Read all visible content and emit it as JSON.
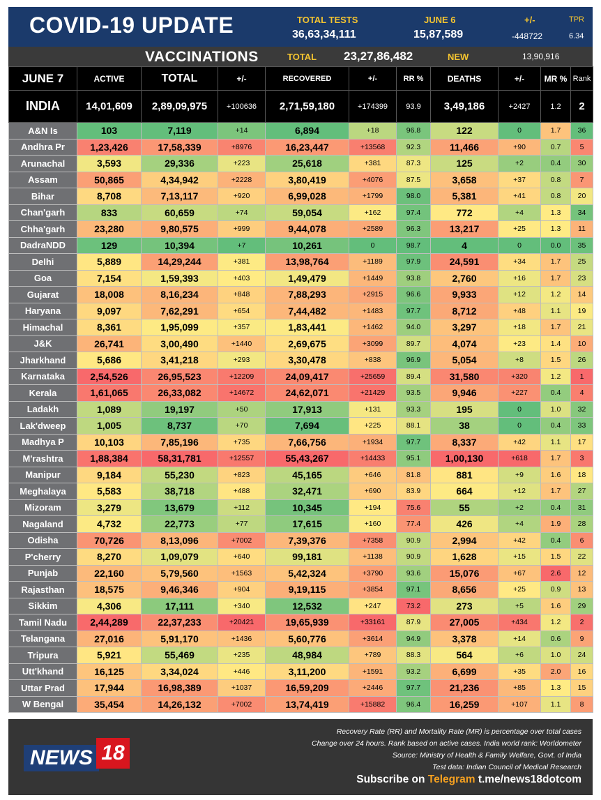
{
  "header": {
    "title": "COVID-19 UPDATE",
    "total_tests_label": "TOTAL TESTS",
    "total_tests_value": "36,63,34,111",
    "date_label": "JUNE 6",
    "date_tests_value": "15,87,589",
    "change_label": "+/-",
    "change_value": "-448722",
    "tpr_label": "TPR",
    "tpr_value": "6.34"
  },
  "vaccinations": {
    "title": "VACCINATIONS",
    "total_label": "TOTAL",
    "total_value": "23,27,86,482",
    "new_label": "NEW",
    "new_value": "13,90,916"
  },
  "columns": {
    "date": "JUNE 7",
    "active": "ACTIVE",
    "total": "TOTAL",
    "total_change": "+/-",
    "recovered": "RECOVERED",
    "recovered_change": "+/-",
    "rr": "RR %",
    "deaths": "DEATHS",
    "deaths_change": "+/-",
    "mr": "MR %",
    "rank": "Rank"
  },
  "india": {
    "name": "INDIA",
    "active": "14,01,609",
    "total": "2,89,09,975",
    "total_change": "+100636",
    "recovered": "2,71,59,180",
    "recovered_change": "+174399",
    "rr": "93.9",
    "deaths": "3,49,186",
    "deaths_change": "+2427",
    "mr": "1.2",
    "rank": "2"
  },
  "rows": [
    {
      "state": "A&N Is",
      "active": "103",
      "total": "7,119",
      "total_change": "+14",
      "recovered": "6,894",
      "recovered_change": "+18",
      "rr": "96.8",
      "deaths": "122",
      "deaths_change": "0",
      "mr": "1.7",
      "rank": "36"
    },
    {
      "state": "Andhra Pr",
      "active": "1,23,426",
      "total": "17,58,339",
      "total_change": "+8976",
      "recovered": "16,23,447",
      "recovered_change": "+13568",
      "rr": "92.3",
      "deaths": "11,466",
      "deaths_change": "+90",
      "mr": "0.7",
      "rank": "5"
    },
    {
      "state": "Arunachal",
      "active": "3,593",
      "total": "29,336",
      "total_change": "+223",
      "recovered": "25,618",
      "recovered_change": "+381",
      "rr": "87.3",
      "deaths": "125",
      "deaths_change": "+2",
      "mr": "0.4",
      "rank": "30"
    },
    {
      "state": "Assam",
      "active": "50,865",
      "total": "4,34,942",
      "total_change": "+2228",
      "recovered": "3,80,419",
      "recovered_change": "+4076",
      "rr": "87.5",
      "deaths": "3,658",
      "deaths_change": "+37",
      "mr": "0.8",
      "rank": "7"
    },
    {
      "state": "Bihar",
      "active": "8,708",
      "total": "7,13,117",
      "total_change": "+920",
      "recovered": "6,99,028",
      "recovered_change": "+1799",
      "rr": "98.0",
      "deaths": "5,381",
      "deaths_change": "+41",
      "mr": "0.8",
      "rank": "20"
    },
    {
      "state": "Chan'garh",
      "active": "833",
      "total": "60,659",
      "total_change": "+74",
      "recovered": "59,054",
      "recovered_change": "+162",
      "rr": "97.4",
      "deaths": "772",
      "deaths_change": "+4",
      "mr": "1.3",
      "rank": "34"
    },
    {
      "state": "Chha'garh",
      "active": "23,280",
      "total": "9,80,575",
      "total_change": "+999",
      "recovered": "9,44,078",
      "recovered_change": "+2589",
      "rr": "96.3",
      "deaths": "13,217",
      "deaths_change": "+25",
      "mr": "1.3",
      "rank": "11"
    },
    {
      "state": "DadraNDD",
      "active": "129",
      "total": "10,394",
      "total_change": "+7",
      "recovered": "10,261",
      "recovered_change": "0",
      "rr": "98.7",
      "deaths": "4",
      "deaths_change": "0",
      "mr": "0.0",
      "rank": "35"
    },
    {
      "state": "Delhi",
      "active": "5,889",
      "total": "14,29,244",
      "total_change": "+381",
      "recovered": "13,98,764",
      "recovered_change": "+1189",
      "rr": "97.9",
      "deaths": "24,591",
      "deaths_change": "+34",
      "mr": "1.7",
      "rank": "25"
    },
    {
      "state": "Goa",
      "active": "7,154",
      "total": "1,59,393",
      "total_change": "+403",
      "recovered": "1,49,479",
      "recovered_change": "+1449",
      "rr": "93.8",
      "deaths": "2,760",
      "deaths_change": "+16",
      "mr": "1.7",
      "rank": "23"
    },
    {
      "state": "Gujarat",
      "active": "18,008",
      "total": "8,16,234",
      "total_change": "+848",
      "recovered": "7,88,293",
      "recovered_change": "+2915",
      "rr": "96.6",
      "deaths": "9,933",
      "deaths_change": "+12",
      "mr": "1.2",
      "rank": "14"
    },
    {
      "state": "Haryana",
      "active": "9,097",
      "total": "7,62,291",
      "total_change": "+654",
      "recovered": "7,44,482",
      "recovered_change": "+1483",
      "rr": "97.7",
      "deaths": "8,712",
      "deaths_change": "+48",
      "mr": "1.1",
      "rank": "19"
    },
    {
      "state": "Himachal",
      "active": "8,361",
      "total": "1,95,099",
      "total_change": "+357",
      "recovered": "1,83,441",
      "recovered_change": "+1462",
      "rr": "94.0",
      "deaths": "3,297",
      "deaths_change": "+18",
      "mr": "1.7",
      "rank": "21"
    },
    {
      "state": "J&K",
      "active": "26,741",
      "total": "3,00,490",
      "total_change": "+1440",
      "recovered": "2,69,675",
      "recovered_change": "+3099",
      "rr": "89.7",
      "deaths": "4,074",
      "deaths_change": "+23",
      "mr": "1.4",
      "rank": "10"
    },
    {
      "state": "Jharkhand",
      "active": "5,686",
      "total": "3,41,218",
      "total_change": "+293",
      "recovered": "3,30,478",
      "recovered_change": "+838",
      "rr": "96.9",
      "deaths": "5,054",
      "deaths_change": "+8",
      "mr": "1.5",
      "rank": "26"
    },
    {
      "state": "Karnataka",
      "active": "2,54,526",
      "total": "26,95,523",
      "total_change": "+12209",
      "recovered": "24,09,417",
      "recovered_change": "+25659",
      "rr": "89.4",
      "deaths": "31,580",
      "deaths_change": "+320",
      "mr": "1.2",
      "rank": "1"
    },
    {
      "state": "Kerala",
      "active": "1,61,065",
      "total": "26,33,082",
      "total_change": "+14672",
      "recovered": "24,62,071",
      "recovered_change": "+21429",
      "rr": "93.5",
      "deaths": "9,946",
      "deaths_change": "+227",
      "mr": "0.4",
      "rank": "4"
    },
    {
      "state": "Ladakh",
      "active": "1,089",
      "total": "19,197",
      "total_change": "+50",
      "recovered": "17,913",
      "recovered_change": "+131",
      "rr": "93.3",
      "deaths": "195",
      "deaths_change": "0",
      "mr": "1.0",
      "rank": "32"
    },
    {
      "state": "Lak'dweep",
      "active": "1,005",
      "total": "8,737",
      "total_change": "+70",
      "recovered": "7,694",
      "recovered_change": "+225",
      "rr": "88.1",
      "deaths": "38",
      "deaths_change": "0",
      "mr": "0.4",
      "rank": "33"
    },
    {
      "state": "Madhya P",
      "active": "10,103",
      "total": "7,85,196",
      "total_change": "+735",
      "recovered": "7,66,756",
      "recovered_change": "+1934",
      "rr": "97.7",
      "deaths": "8,337",
      "deaths_change": "+42",
      "mr": "1.1",
      "rank": "17"
    },
    {
      "state": "M'rashtra",
      "active": "1,88,384",
      "total": "58,31,781",
      "total_change": "+12557",
      "recovered": "55,43,267",
      "recovered_change": "+14433",
      "rr": "95.1",
      "deaths": "1,00,130",
      "deaths_change": "+618",
      "mr": "1.7",
      "rank": "3"
    },
    {
      "state": "Manipur",
      "active": "9,184",
      "total": "55,230",
      "total_change": "+823",
      "recovered": "45,165",
      "recovered_change": "+646",
      "rr": "81.8",
      "deaths": "881",
      "deaths_change": "+9",
      "mr": "1.6",
      "rank": "18"
    },
    {
      "state": "Meghalaya",
      "active": "5,583",
      "total": "38,718",
      "total_change": "+488",
      "recovered": "32,471",
      "recovered_change": "+690",
      "rr": "83.9",
      "deaths": "664",
      "deaths_change": "+12",
      "mr": "1.7",
      "rank": "27"
    },
    {
      "state": "Mizoram",
      "active": "3,279",
      "total": "13,679",
      "total_change": "+112",
      "recovered": "10,345",
      "recovered_change": "+194",
      "rr": "75.6",
      "deaths": "55",
      "deaths_change": "+2",
      "mr": "0.4",
      "rank": "31"
    },
    {
      "state": "Nagaland",
      "active": "4,732",
      "total": "22,773",
      "total_change": "+77",
      "recovered": "17,615",
      "recovered_change": "+160",
      "rr": "77.4",
      "deaths": "426",
      "deaths_change": "+4",
      "mr": "1.9",
      "rank": "28"
    },
    {
      "state": "Odisha",
      "active": "70,726",
      "total": "8,13,096",
      "total_change": "+7002",
      "recovered": "7,39,376",
      "recovered_change": "+7358",
      "rr": "90.9",
      "deaths": "2,994",
      "deaths_change": "+42",
      "mr": "0.4",
      "rank": "6"
    },
    {
      "state": "P'cherry",
      "active": "8,270",
      "total": "1,09,079",
      "total_change": "+640",
      "recovered": "99,181",
      "recovered_change": "+1138",
      "rr": "90.9",
      "deaths": "1,628",
      "deaths_change": "+15",
      "mr": "1.5",
      "rank": "22"
    },
    {
      "state": "Punjab",
      "active": "22,160",
      "total": "5,79,560",
      "total_change": "+1563",
      "recovered": "5,42,324",
      "recovered_change": "+3790",
      "rr": "93.6",
      "deaths": "15,076",
      "deaths_change": "+67",
      "mr": "2.6",
      "rank": "12"
    },
    {
      "state": "Rajasthan",
      "active": "18,575",
      "total": "9,46,346",
      "total_change": "+904",
      "recovered": "9,19,115",
      "recovered_change": "+3854",
      "rr": "97.1",
      "deaths": "8,656",
      "deaths_change": "+25",
      "mr": "0.9",
      "rank": "13"
    },
    {
      "state": "Sikkim",
      "active": "4,306",
      "total": "17,111",
      "total_change": "+340",
      "recovered": "12,532",
      "recovered_change": "+247",
      "rr": "73.2",
      "deaths": "273",
      "deaths_change": "+5",
      "mr": "1.6",
      "rank": "29"
    },
    {
      "state": "Tamil Nadu",
      "active": "2,44,289",
      "total": "22,37,233",
      "total_change": "+20421",
      "recovered": "19,65,939",
      "recovered_change": "+33161",
      "rr": "87.9",
      "deaths": "27,005",
      "deaths_change": "+434",
      "mr": "1.2",
      "rank": "2"
    },
    {
      "state": "Telangana",
      "active": "27,016",
      "total": "5,91,170",
      "total_change": "+1436",
      "recovered": "5,60,776",
      "recovered_change": "+3614",
      "rr": "94.9",
      "deaths": "3,378",
      "deaths_change": "+14",
      "mr": "0.6",
      "rank": "9"
    },
    {
      "state": "Tripura",
      "active": "5,921",
      "total": "55,469",
      "total_change": "+235",
      "recovered": "48,984",
      "recovered_change": "+789",
      "rr": "88.3",
      "deaths": "564",
      "deaths_change": "+6",
      "mr": "1.0",
      "rank": "24"
    },
    {
      "state": "Utt'khand",
      "active": "16,125",
      "total": "3,34,024",
      "total_change": "+446",
      "recovered": "3,11,200",
      "recovered_change": "+1591",
      "rr": "93.2",
      "deaths": "6,699",
      "deaths_change": "+35",
      "mr": "2.0",
      "rank": "16"
    },
    {
      "state": "Uttar Prad",
      "active": "17,944",
      "total": "16,98,389",
      "total_change": "+1037",
      "recovered": "16,59,209",
      "recovered_change": "+2446",
      "rr": "97.7",
      "deaths": "21,236",
      "deaths_change": "+85",
      "mr": "1.3",
      "rank": "15"
    },
    {
      "state": "W Bengal",
      "active": "35,454",
      "total": "14,26,132",
      "total_change": "+7002",
      "recovered": "13,74,419",
      "recovered_change": "+15882",
      "rr": "96.4",
      "deaths": "16,259",
      "deaths_change": "+107",
      "mr": "1.1",
      "rank": "8"
    }
  ],
  "footer": {
    "notes": [
      "Recovery Rate (RR) and Mortality Rate (MR) is percentage over total cases",
      "Change over 24 hours. Rank based on active cases. India world rank: Worldometer",
      "Source: Ministry of Health & Family Welfare, Govt. of India",
      "Test data: Indian Council of Medical Research"
    ],
    "logo_news": "NEWS",
    "logo_18": "18",
    "subscribe_prefix": "Subscribe on",
    "subscribe_platform": "Telegram",
    "subscribe_link": "t.me/news18dotcom"
  },
  "colors": {
    "header_bg": "#1b3a6b",
    "accent_yellow": "#f4c430",
    "recovered_green": "#3ec44a",
    "deaths_red": "#ff3b2f",
    "state_cell_bg": "#6f7073"
  }
}
